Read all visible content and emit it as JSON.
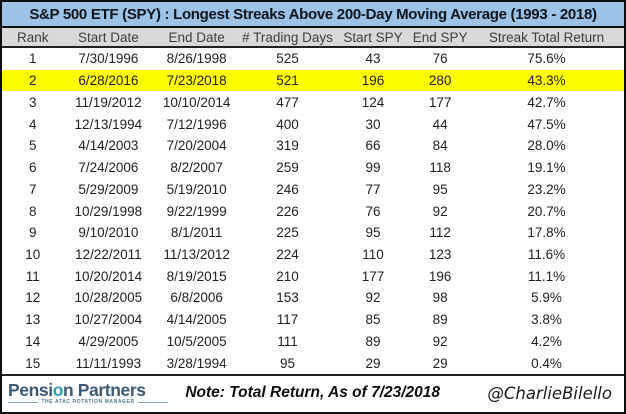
{
  "chart_data": {
    "type": "table",
    "title": "S&P 500 ETF (SPY) : Longest Streaks Above 200-Day Moving Average (1993 - 2018)",
    "columns": [
      "Rank",
      "Start Date",
      "End Date",
      "# Trading Days",
      "Start SPY",
      "End SPY",
      "Streak Total Return"
    ],
    "rows": [
      [
        "1",
        "7/30/1996",
        "8/26/1998",
        "525",
        "43",
        "76",
        "75.6%"
      ],
      [
        "2",
        "6/28/2016",
        "7/23/2018",
        "521",
        "196",
        "280",
        "43.3%"
      ],
      [
        "3",
        "11/19/2012",
        "10/10/2014",
        "477",
        "124",
        "177",
        "42.7%"
      ],
      [
        "4",
        "12/13/1994",
        "7/12/1996",
        "400",
        "30",
        "44",
        "47.5%"
      ],
      [
        "5",
        "4/14/2003",
        "7/20/2004",
        "319",
        "66",
        "84",
        "28.0%"
      ],
      [
        "6",
        "7/24/2006",
        "8/2/2007",
        "259",
        "99",
        "118",
        "19.1%"
      ],
      [
        "7",
        "5/29/2009",
        "5/19/2010",
        "246",
        "77",
        "95",
        "23.2%"
      ],
      [
        "8",
        "10/29/1998",
        "9/22/1999",
        "226",
        "76",
        "92",
        "20.7%"
      ],
      [
        "9",
        "9/10/2010",
        "8/1/2011",
        "225",
        "95",
        "112",
        "17.8%"
      ],
      [
        "10",
        "12/22/2011",
        "11/13/2012",
        "224",
        "110",
        "123",
        "11.6%"
      ],
      [
        "11",
        "10/20/2014",
        "8/19/2015",
        "210",
        "177",
        "196",
        "11.1%"
      ],
      [
        "12",
        "10/28/2005",
        "6/8/2006",
        "153",
        "92",
        "98",
        "5.9%"
      ],
      [
        "13",
        "10/27/2004",
        "4/14/2005",
        "117",
        "85",
        "89",
        "3.8%"
      ],
      [
        "14",
        "4/29/2005",
        "10/5/2005",
        "111",
        "89",
        "92",
        "4.2%"
      ],
      [
        "15",
        "11/11/1993",
        "3/28/1994",
        "95",
        "29",
        "29",
        "0.4%"
      ]
    ],
    "highlighted_rank": "2",
    "layout": {
      "grid": "off",
      "highlight_color": "#FFFF00"
    }
  },
  "footer": {
    "logo_name": "Pension Partners",
    "logo_tagline": "THE ATAC ROTATION MANAGER",
    "note": "Note: Total Return, As of 7/23/2018",
    "handle": "@CharlieBilello"
  },
  "colors": {
    "title_bg": "#9CC2E5",
    "header_bg": "#D9D9D9",
    "highlight": "#FFFF00",
    "logo_slate": "#3D5A73",
    "logo_teal": "#2E9CA6",
    "border": "#0d0d0d"
  }
}
